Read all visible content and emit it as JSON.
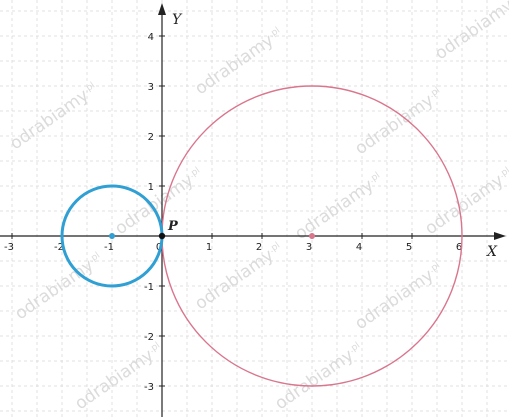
{
  "axes": {
    "x_name": "X",
    "y_name": "Y",
    "x_range": [
      -3,
      6
    ],
    "y_range": [
      -3,
      4
    ],
    "x_ticks": [
      "-3",
      "-2",
      "-1",
      "0",
      "1",
      "2",
      "3",
      "4",
      "5",
      "6"
    ],
    "y_ticks": [
      "-3",
      "-2",
      "-1",
      "1",
      "2",
      "3",
      "4"
    ],
    "grid": true
  },
  "point_label": "P",
  "shapes": {
    "small_circle": {
      "center": [
        -1,
        0
      ],
      "radius": 1,
      "color": "#2f9fd4"
    },
    "large_circle": {
      "center": [
        3,
        0
      ],
      "radius": 3,
      "color": "#d9758d"
    },
    "point_p": {
      "at": [
        0,
        0
      ],
      "color": "#111111"
    }
  },
  "watermark": {
    "text": "odrabiamy",
    "suffix": ".pl"
  },
  "colors": {
    "grid": "#d9d9d9",
    "axis": "#222222"
  }
}
